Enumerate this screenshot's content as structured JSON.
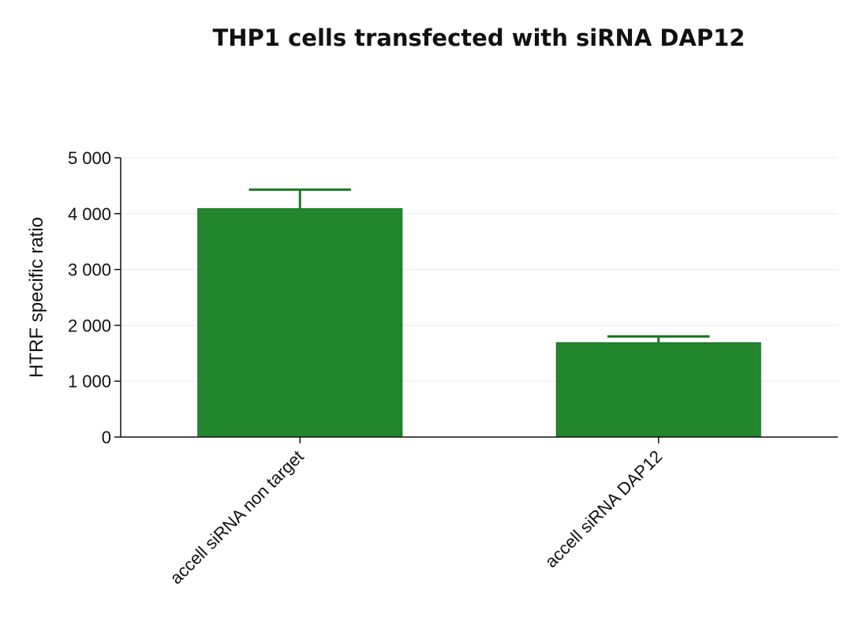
{
  "chart_data": {
    "type": "bar",
    "title": "THP1 cells transfected with siRNA DAP12",
    "xlabel": "",
    "ylabel": "HTRF specific ratio",
    "categories": [
      "accell siRNA non target",
      "accell siRNA DAP12"
    ],
    "values": [
      4090,
      1690
    ],
    "error_upper": [
      4430,
      1800
    ],
    "ylim": [
      0,
      5000
    ],
    "yticks": [
      0,
      1000,
      2000,
      3000,
      4000,
      5000
    ],
    "ytick_labels": [
      "0",
      "1 000",
      "2 000",
      "3 000",
      "4 000",
      "5 000"
    ],
    "grid": true,
    "legend": "none",
    "bar_color": "#22862c",
    "error_color": "#1c7a27"
  }
}
